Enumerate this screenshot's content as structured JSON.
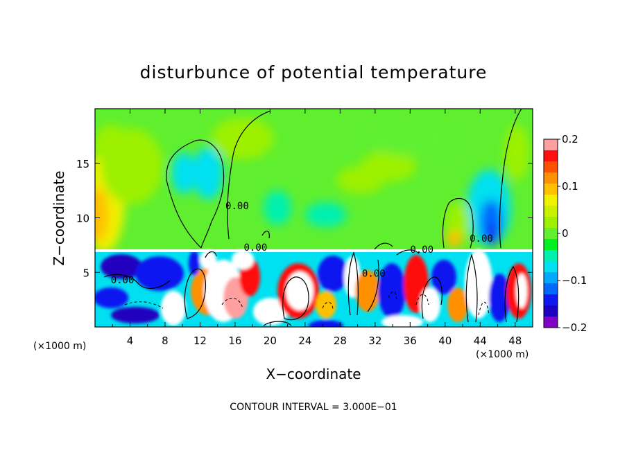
{
  "chart_data": {
    "type": "heatmap",
    "title": "disturbunce of potential temperature",
    "xlabel": "X−coordinate",
    "ylabel": "Z−coordinate",
    "x_unit": "(×1000 m)",
    "z_unit": "(×1000 m)",
    "xlim": [
      0,
      50
    ],
    "ylim": [
      0,
      20
    ],
    "x_ticks": [
      4,
      8,
      12,
      16,
      20,
      24,
      28,
      32,
      36,
      40,
      44,
      48
    ],
    "y_ticks": [
      5,
      10,
      15
    ],
    "colorbar": {
      "ticks": [
        "0.2",
        "0.1",
        "0",
        "−0.1",
        "−0.2"
      ],
      "values": [
        0.2,
        0.1,
        0,
        -0.1,
        -0.2
      ],
      "range": [
        -0.2,
        0.2
      ],
      "colors": [
        "#ff9f9f",
        "#ff1010",
        "#ff5000",
        "#ff9000",
        "#ffc000",
        "#f0f000",
        "#c8f000",
        "#9cf000",
        "#60f030",
        "#00f020",
        "#00f0b0",
        "#00e0f0",
        "#00a8ff",
        "#0068ff",
        "#1018f0",
        "#2000c0",
        "#8000c8"
      ]
    },
    "contour_labels": [
      {
        "text": "0.00",
        "x": 14.9,
        "z": 10.8
      },
      {
        "text": "0.00",
        "x": 1.8,
        "z": 4.0
      },
      {
        "text": "0.00",
        "x": 17.0,
        "z": 7.0
      },
      {
        "text": "0.00",
        "x": 30.5,
        "z": 4.6
      },
      {
        "text": "0.00",
        "x": 36.0,
        "z": 6.8
      },
      {
        "text": "0.00",
        "x": 42.8,
        "z": 7.8
      }
    ],
    "contour_interval": "CONTOUR INTERVAL = 3.000E−01"
  }
}
